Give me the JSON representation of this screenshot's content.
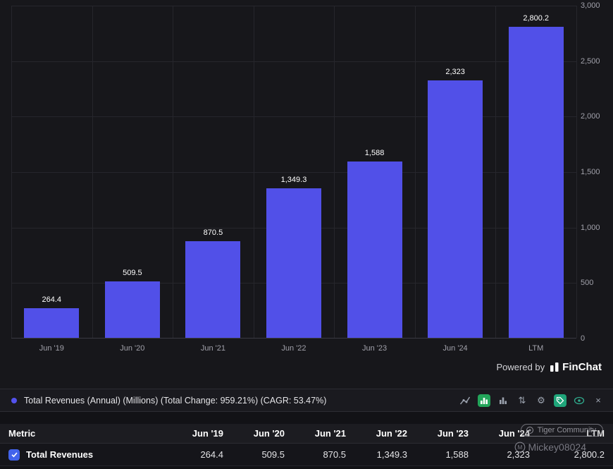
{
  "chart_data": {
    "type": "bar",
    "title": "Total Revenues (Annual) (Millions)",
    "categories": [
      "Jun '19",
      "Jun '20",
      "Jun '21",
      "Jun '22",
      "Jun '23",
      "Jun '24",
      "LTM"
    ],
    "values": [
      264.4,
      509.5,
      870.5,
      1349.3,
      1588,
      2323,
      2800.2
    ],
    "value_labels": [
      "264.4",
      "509.5",
      "870.5",
      "1,349.3",
      "1,588",
      "2,323",
      "2,800.2"
    ],
    "xlabel": "",
    "ylabel": "",
    "ylim": [
      0,
      3000
    ],
    "y_ticks": [
      "3,000",
      "2,500",
      "2,000",
      "1,500",
      "1,000",
      "500",
      "0"
    ],
    "grid": true,
    "bar_color": "#5150e8",
    "legend_position": "bottom"
  },
  "branding": {
    "powered_by": "Powered by",
    "brand": "FinChat"
  },
  "legend": {
    "label": "Total Revenues (Annual) (Millions) (Total Change: 959.21%) (CAGR: 53.47%)",
    "dot_color": "#5352ed"
  },
  "toolbar": {
    "icons": [
      {
        "name": "line-chart-icon"
      },
      {
        "name": "bar-chart-active-icon",
        "bg": "#23a55a"
      },
      {
        "name": "column-chart-icon"
      },
      {
        "name": "sort-icon",
        "glyph": "⇅"
      },
      {
        "name": "settings-gear-icon",
        "glyph": "⚙"
      },
      {
        "name": "tag-icon",
        "bg": "#1fa57a"
      },
      {
        "name": "visibility-eye-icon"
      },
      {
        "name": "remove-icon",
        "glyph": "×"
      }
    ]
  },
  "table": {
    "metric_header": "Metric",
    "column_headers": [
      "Jun '19",
      "Jun '20",
      "Jun '21",
      "Jun '22",
      "Jun '23",
      "Jun '24",
      "LTM"
    ],
    "rows": [
      {
        "metric": "Total Revenues",
        "checked": true,
        "values": [
          "264.4",
          "509.5",
          "870.5",
          "1,349.3",
          "1,588",
          "2,323",
          "2,800.2"
        ]
      }
    ]
  },
  "watermark": {
    "badge": "Tiger Community",
    "username": "Mickey08024"
  },
  "colors": {
    "bar": "#5150e8",
    "accent_green": "#23a55a",
    "checkbox": "#4263eb"
  }
}
